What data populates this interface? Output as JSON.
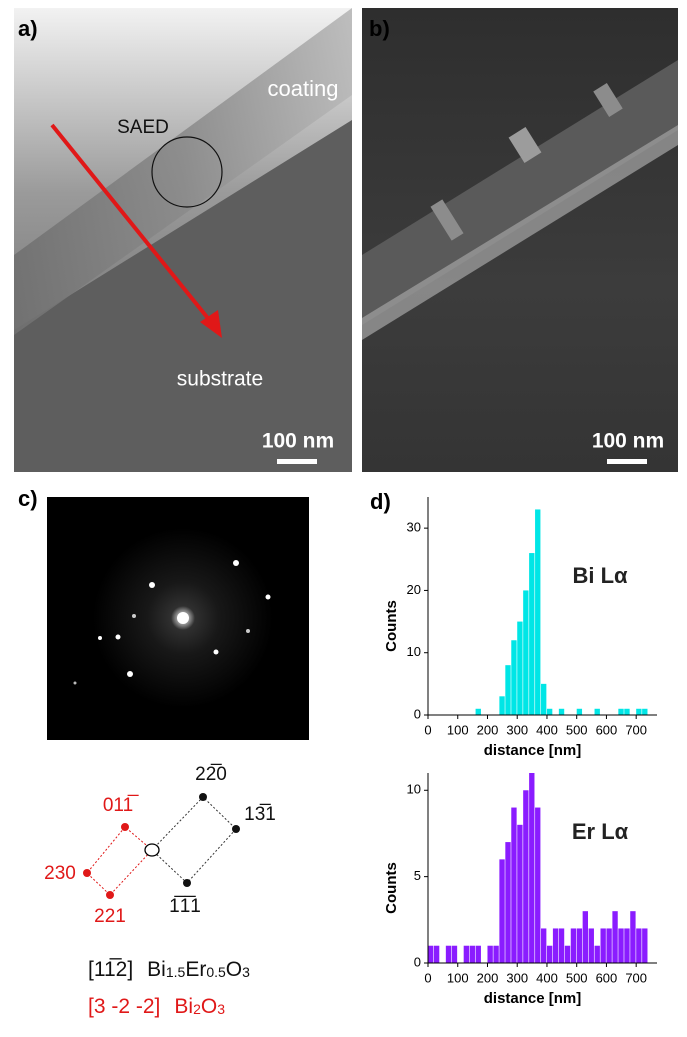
{
  "panels": {
    "a": {
      "label": "a)",
      "coating": "coating",
      "saed": "SAED",
      "substrate": "substrate",
      "scale_bar": "100 nm"
    },
    "b": {
      "label": "b)",
      "scale_bar": "100 nm"
    },
    "c": {
      "label": "c)",
      "black_spots": [
        "22̅0",
        "13̅1",
        "1̅1̅1"
      ],
      "red_spots": [
        "011̅",
        "230",
        "221"
      ],
      "zone_black": "[11̅2]",
      "formula_black": [
        "Bi",
        "1.5",
        "Er",
        "0.5",
        "O",
        "3"
      ],
      "zone_red": "[3 -2 -2]",
      "formula_red": [
        "Bi",
        "2",
        "O",
        "3"
      ]
    },
    "d": {
      "label": "d)"
    }
  },
  "chart_data": [
    {
      "type": "bar",
      "annotation": "Bi Lα",
      "y_label": "Counts",
      "x_label": "distance [nm]",
      "color": "#00e6e6",
      "x": [
        0,
        20,
        40,
        60,
        80,
        100,
        120,
        140,
        160,
        180,
        200,
        220,
        240,
        260,
        280,
        300,
        320,
        340,
        360,
        380,
        400,
        420,
        440,
        460,
        480,
        500,
        520,
        540,
        560,
        580,
        600,
        620,
        640,
        660,
        680,
        700,
        720
      ],
      "values": [
        0,
        0,
        0,
        0,
        0,
        0,
        0,
        0,
        1,
        0,
        0,
        0,
        3,
        8,
        12,
        15,
        20,
        26,
        33,
        5,
        1,
        0,
        1,
        0,
        0,
        1,
        0,
        0,
        1,
        0,
        0,
        0,
        1,
        1,
        0,
        1,
        1
      ],
      "xlim": [
        0,
        770
      ],
      "xticks": [
        0,
        100,
        200,
        300,
        400,
        500,
        600,
        700
      ],
      "ylim": [
        0,
        35
      ],
      "yticks": [
        0,
        10,
        20,
        30
      ]
    },
    {
      "type": "bar",
      "annotation": "Er Lα",
      "y_label": "Counts",
      "x_label": "distance [nm]",
      "color": "#8a1cff",
      "x": [
        0,
        20,
        40,
        60,
        80,
        100,
        120,
        140,
        160,
        180,
        200,
        220,
        240,
        260,
        280,
        300,
        320,
        340,
        360,
        380,
        400,
        420,
        440,
        460,
        480,
        500,
        520,
        540,
        560,
        580,
        600,
        620,
        640,
        660,
        680,
        700,
        720
      ],
      "values": [
        1,
        1,
        0,
        1,
        1,
        0,
        1,
        1,
        1,
        0,
        1,
        1,
        6,
        7,
        9,
        8,
        10,
        11,
        9,
        2,
        1,
        2,
        2,
        1,
        2,
        2,
        3,
        2,
        1,
        2,
        2,
        3,
        2,
        2,
        3,
        2,
        2
      ],
      "xlim": [
        0,
        770
      ],
      "xticks": [
        0,
        100,
        200,
        300,
        400,
        500,
        600,
        700
      ],
      "ylim": [
        0,
        11
      ],
      "yticks": [
        0,
        5,
        10
      ]
    }
  ]
}
